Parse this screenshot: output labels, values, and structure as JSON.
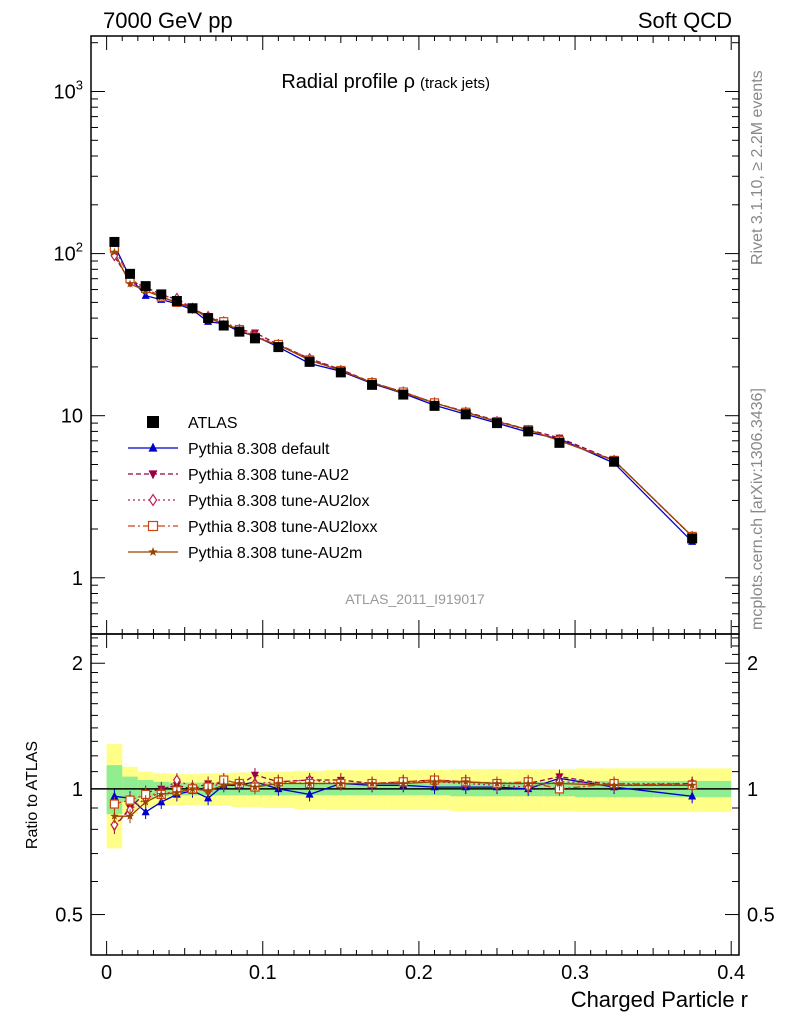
{
  "header": {
    "energy_label": "7000 GeV pp",
    "process_label": "Soft QCD",
    "rivet_label": "Rivet 3.1.10, ≥ 2.2M events",
    "mcplots_label": "mcplots.cern.ch [arXiv:1306.3436]"
  },
  "chart_data": [
    {
      "type": "line",
      "title": "Radial profile ρ",
      "title_suffix": "(track jets)",
      "watermark": "ATLAS_2011_I919017",
      "x": [
        0.005,
        0.015,
        0.025,
        0.035,
        0.045,
        0.055,
        0.065,
        0.075,
        0.085,
        0.095,
        0.11,
        0.13,
        0.15,
        0.17,
        0.19,
        0.21,
        0.23,
        0.25,
        0.27,
        0.29,
        0.325,
        0.375
      ],
      "xlim": [
        -0.01,
        0.405
      ],
      "ylim": [
        0.45,
        2200
      ],
      "yscale": "log",
      "ytick_labels": [
        "1",
        "10",
        "10^2",
        "10^3"
      ],
      "legend_position": "middle-left",
      "series": [
        {
          "name": "ATLAS",
          "color": "#000000",
          "marker": "square",
          "values": [
            118,
            75,
            63,
            56,
            51,
            46,
            40,
            36,
            33,
            30,
            26.5,
            21.5,
            18.5,
            15.5,
            13.5,
            11.5,
            10.2,
            9.0,
            8.0,
            6.8,
            5.2,
            1.75
          ]
        },
        {
          "name": "Pythia 8.308 default",
          "color": "#0000cc",
          "marker": "triangle-up",
          "dash": "",
          "values": [
            113,
            71,
            55,
            52,
            49,
            45,
            38,
            37,
            33,
            31,
            26.5,
            21,
            18.8,
            15.8,
            13.7,
            11.6,
            10.2,
            9.0,
            7.9,
            7.2,
            5.1,
            1.67
          ]
        },
        {
          "name": "Pythia 8.308 tune-AU2",
          "color": "#990044",
          "marker": "triangle-down",
          "dash": "5,3",
          "values": [
            96,
            68,
            62,
            56,
            52,
            46,
            41,
            37,
            34,
            32.5,
            27.5,
            22.5,
            19.3,
            16.0,
            14.0,
            12.0,
            10.6,
            9.3,
            8.2,
            7.3,
            5.3,
            1.8
          ]
        },
        {
          "name": "Pythia 8.308 tune-AU2lox",
          "color": "#bb2255",
          "marker": "diamond-open",
          "dash": "2,3",
          "values": [
            97,
            67,
            60,
            55,
            53,
            46,
            41,
            38,
            34,
            31,
            27.5,
            22.5,
            19.0,
            16.0,
            14.0,
            12.0,
            10.5,
            9.2,
            8.1,
            7.1,
            5.3,
            1.8
          ]
        },
        {
          "name": "Pythia 8.308 tune-AU2loxx",
          "color": "#cc4411",
          "marker": "square-open",
          "dash": "7,3,2,3",
          "values": [
            108,
            70,
            61,
            54,
            50,
            46,
            40,
            38,
            34,
            30.5,
            27.5,
            22,
            19.0,
            16.0,
            14.0,
            12.0,
            10.5,
            9.2,
            8.2,
            7.0,
            5.3,
            1.8
          ]
        },
        {
          "name": "Pythia 8.308 tune-AU2m",
          "color": "#994400",
          "marker": "star",
          "dash": "",
          "values": [
            102,
            65,
            59,
            54,
            50,
            46,
            40,
            37,
            34,
            30.5,
            27.3,
            22,
            19.0,
            16.0,
            13.8,
            12.0,
            10.5,
            9.2,
            8.2,
            7.0,
            5.3,
            1.8
          ]
        }
      ]
    },
    {
      "type": "line",
      "ylabel": "Ratio to ATLAS",
      "xlabel": "Charged Particle r",
      "xlim": [
        -0.01,
        0.405
      ],
      "ylim": [
        0.4,
        2.35
      ],
      "yscale": "log",
      "ytick_labels": [
        "0.5",
        "1",
        "2"
      ],
      "xtick_labels": [
        "0",
        "0.1",
        "0.2",
        "0.3",
        "0.4"
      ],
      "bands": {
        "edges": [
          0,
          0.01,
          0.02,
          0.03,
          0.04,
          0.05,
          0.06,
          0.07,
          0.08,
          0.09,
          0.1,
          0.12,
          0.14,
          0.16,
          0.18,
          0.2,
          0.22,
          0.24,
          0.26,
          0.28,
          0.3,
          0.35,
          0.4
        ],
        "stat_color": "#90ee90",
        "syst_color": "#ffff88",
        "stat": [
          [
            0.87,
            1.14
          ],
          [
            0.93,
            1.07
          ],
          [
            0.95,
            1.05
          ],
          [
            0.96,
            1.04
          ],
          [
            0.965,
            1.035
          ],
          [
            0.965,
            1.035
          ],
          [
            0.965,
            1.035
          ],
          [
            0.965,
            1.035
          ],
          [
            0.965,
            1.035
          ],
          [
            0.965,
            1.035
          ],
          [
            0.965,
            1.035
          ],
          [
            0.965,
            1.035
          ],
          [
            0.965,
            1.035
          ],
          [
            0.965,
            1.035
          ],
          [
            0.965,
            1.035
          ],
          [
            0.965,
            1.035
          ],
          [
            0.96,
            1.04
          ],
          [
            0.96,
            1.04
          ],
          [
            0.96,
            1.04
          ],
          [
            0.96,
            1.04
          ],
          [
            0.955,
            1.045
          ],
          [
            0.955,
            1.045
          ]
        ],
        "syst": [
          [
            0.72,
            1.28
          ],
          [
            0.87,
            1.13
          ],
          [
            0.9,
            1.1
          ],
          [
            0.91,
            1.09
          ],
          [
            0.915,
            1.085
          ],
          [
            0.915,
            1.085
          ],
          [
            0.91,
            1.09
          ],
          [
            0.91,
            1.09
          ],
          [
            0.905,
            1.095
          ],
          [
            0.905,
            1.095
          ],
          [
            0.9,
            1.1
          ],
          [
            0.895,
            1.105
          ],
          [
            0.89,
            1.11
          ],
          [
            0.89,
            1.11
          ],
          [
            0.89,
            1.11
          ],
          [
            0.89,
            1.11
          ],
          [
            0.885,
            1.115
          ],
          [
            0.885,
            1.115
          ],
          [
            0.885,
            1.115
          ],
          [
            0.885,
            1.115
          ],
          [
            0.88,
            1.12
          ],
          [
            0.88,
            1.12
          ]
        ]
      },
      "series": [
        {
          "name": "Pythia 8.308 default",
          "values": [
            0.96,
            0.95,
            0.88,
            0.93,
            0.97,
            0.99,
            0.95,
            1.02,
            1.02,
            1.04,
            1.0,
            0.97,
            1.03,
            1.02,
            1.02,
            1.01,
            1.01,
            1.01,
            1.0,
            1.06,
            1.01,
            0.96
          ]
        },
        {
          "name": "Pythia 8.308 tune-AU2",
          "values": [
            0.81,
            0.9,
            0.98,
            1.0,
            1.02,
            1.0,
            1.03,
            1.03,
            1.02,
            1.08,
            1.04,
            1.05,
            1.05,
            1.03,
            1.04,
            1.05,
            1.04,
            1.03,
            1.03,
            1.07,
            1.02,
            1.03
          ]
        },
        {
          "name": "Pythia 8.308 tune-AU2lox",
          "values": [
            0.82,
            0.89,
            0.95,
            0.98,
            1.05,
            1.01,
            0.99,
            1.05,
            1.03,
            1.03,
            1.04,
            1.05,
            1.03,
            1.03,
            1.04,
            1.04,
            1.03,
            1.02,
            1.01,
            1.04,
            1.03,
            1.03
          ]
        },
        {
          "name": "Pythia 8.308 tune-AU2loxx",
          "values": [
            0.92,
            0.94,
            0.97,
            0.97,
            0.99,
            1.0,
            1.01,
            1.05,
            1.03,
            1.01,
            1.04,
            1.03,
            1.03,
            1.03,
            1.04,
            1.05,
            1.04,
            1.03,
            1.04,
            1.0,
            1.03,
            1.02
          ]
        },
        {
          "name": "Pythia 8.308 tune-AU2m",
          "values": [
            0.86,
            0.86,
            0.93,
            0.97,
            0.98,
            1.0,
            0.99,
            1.02,
            1.03,
            1.01,
            1.03,
            1.03,
            1.03,
            1.03,
            1.03,
            1.04,
            1.04,
            1.03,
            1.03,
            1.03,
            1.02,
            1.02
          ]
        }
      ]
    }
  ]
}
